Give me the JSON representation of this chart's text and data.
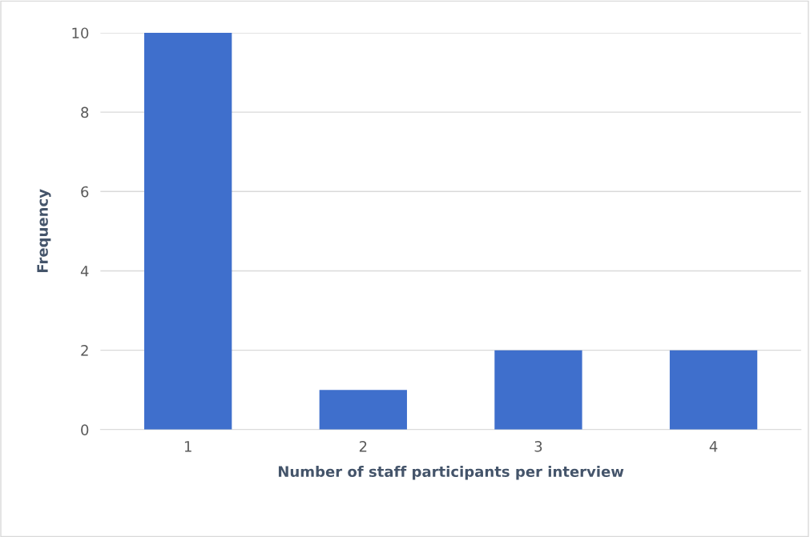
{
  "chart_data": {
    "type": "bar",
    "xlabel": "Number of staff participants per interview",
    "ylabel": "Frequency",
    "categories": [
      "1",
      "2",
      "3",
      "4"
    ],
    "values": [
      10,
      1,
      2,
      2
    ],
    "color": "#3f6fcc",
    "ylim": [
      0,
      10
    ],
    "yticks": [
      0,
      2,
      4,
      6,
      8,
      10
    ],
    "grid": "y",
    "legend": false
  }
}
